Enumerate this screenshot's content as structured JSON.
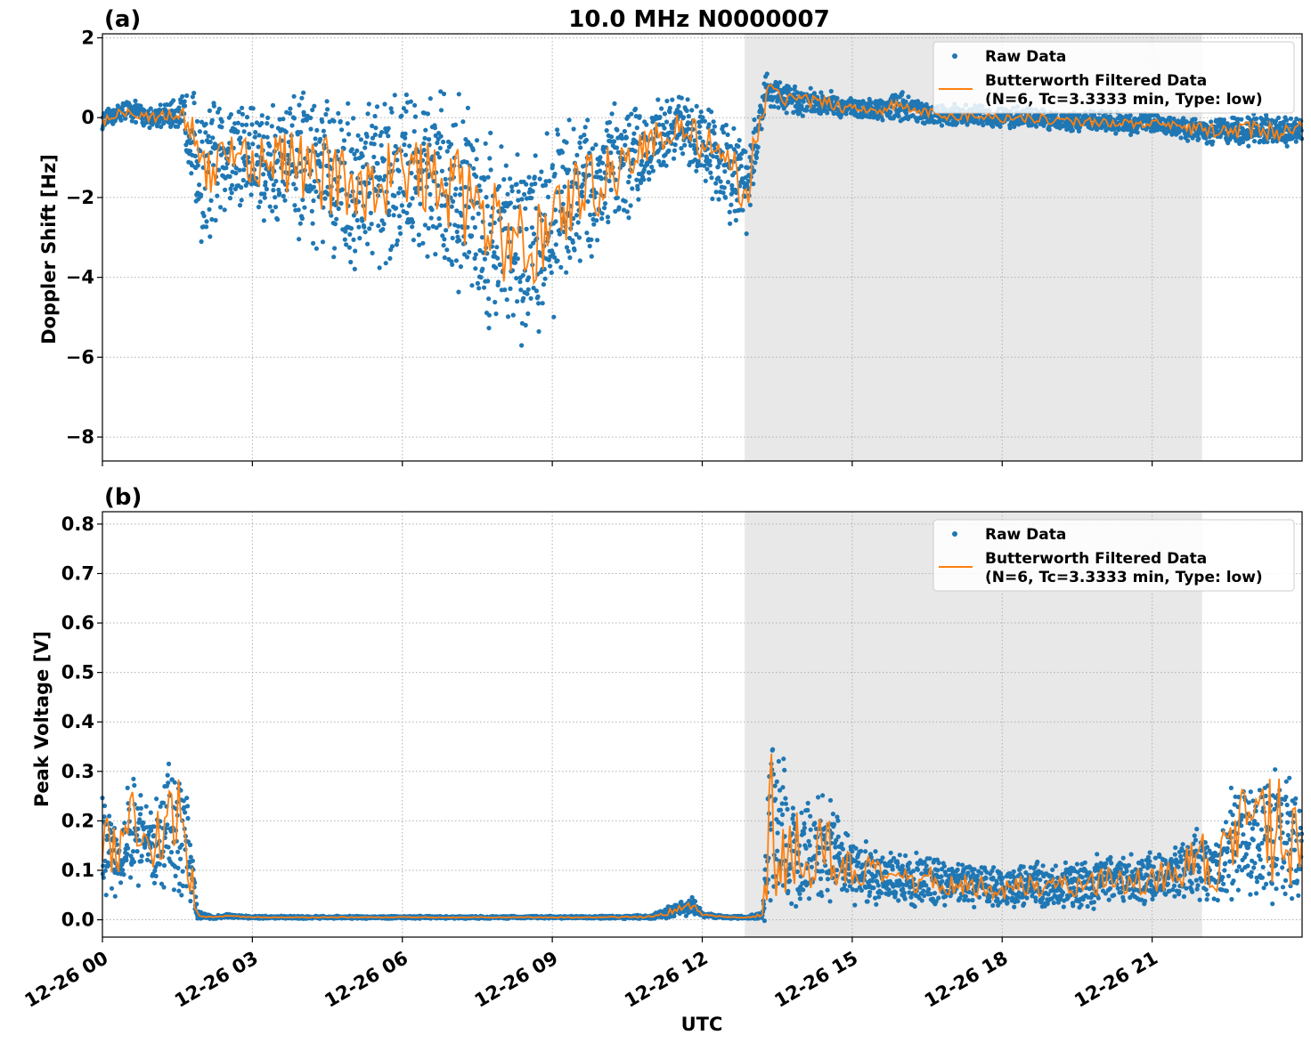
{
  "figure": {
    "title": "10.0 MHz N0000007",
    "xlabel": "UTC"
  },
  "colors": {
    "raw": "#1f77b4",
    "filtered": "#ff7f0e",
    "shade": "#e8e8e8",
    "grid": "#b0b0b0"
  },
  "chart_data": [
    {
      "type": "scatter",
      "panel_label": "(a)",
      "ylabel": "Doppler Shift [Hz]",
      "xlim_hours": [
        0,
        24
      ],
      "ylim": [
        -8.6,
        2.1
      ],
      "yticks": [
        2,
        0,
        -2,
        -4,
        -6,
        -8
      ],
      "ytick_labels": [
        "2",
        "0",
        "−2",
        "−4",
        "−6",
        "−8"
      ],
      "xticks_hours": [
        0,
        3,
        6,
        9,
        12,
        15,
        18,
        21
      ],
      "xtick_labels": [
        "12-26 00",
        "12-26 03",
        "12-26 06",
        "12-26 09",
        "12-26 12",
        "12-26 15",
        "12-26 18",
        "12-26 21"
      ],
      "shaded_span_hours": [
        12.85,
        22.0
      ],
      "grid": true,
      "legend_position": "top-right",
      "legend": [
        "Raw Data",
        "Butterworth Filtered Data",
        "(N=6, Tc=3.3333 min, Type: low)"
      ],
      "series": [
        {
          "name": "Raw Data",
          "style": "points",
          "x_hours": [
            0.0,
            0.5,
            1.0,
            1.5,
            1.8,
            2.0,
            2.5,
            3.0,
            3.5,
            4.0,
            4.5,
            5.0,
            5.5,
            6.0,
            6.5,
            7.0,
            7.5,
            8.0,
            8.5,
            9.0,
            9.5,
            10.0,
            10.5,
            11.0,
            11.5,
            12.0,
            12.5,
            12.9,
            13.3,
            13.6,
            14.0,
            14.5,
            15.0,
            15.5,
            16.0,
            16.5,
            17.0,
            17.5,
            18.0,
            18.5,
            19.0,
            19.5,
            20.0,
            20.5,
            21.0,
            21.5,
            22.0,
            22.5,
            23.0,
            23.5,
            24.0
          ],
          "center": [
            -0.1,
            0.2,
            0.0,
            0.1,
            -0.4,
            -1.6,
            -0.8,
            -1.0,
            -1.1,
            -1.2,
            -1.5,
            -1.7,
            -1.6,
            -1.4,
            -1.5,
            -1.8,
            -2.3,
            -3.0,
            -3.4,
            -2.5,
            -1.9,
            -1.5,
            -1.1,
            -0.6,
            -0.2,
            -0.6,
            -1.4,
            -1.7,
            0.7,
            0.5,
            0.4,
            0.35,
            0.25,
            0.2,
            0.3,
            0.1,
            0.05,
            0.05,
            0.0,
            0.0,
            -0.05,
            -0.1,
            -0.1,
            -0.15,
            -0.15,
            -0.25,
            -0.3,
            -0.35,
            -0.3,
            -0.35,
            -0.3
          ],
          "spread": [
            0.25,
            0.3,
            0.3,
            0.4,
            1.4,
            2.0,
            1.7,
            1.7,
            1.8,
            2.0,
            2.2,
            2.3,
            2.4,
            2.4,
            2.4,
            2.6,
            2.8,
            2.9,
            2.8,
            2.6,
            2.3,
            2.0,
            1.6,
            1.1,
            0.8,
            1.1,
            1.5,
            1.3,
            0.5,
            0.45,
            0.4,
            0.35,
            0.3,
            0.3,
            0.4,
            0.3,
            0.3,
            0.3,
            0.28,
            0.28,
            0.28,
            0.28,
            0.28,
            0.28,
            0.28,
            0.3,
            0.35,
            0.4,
            0.45,
            0.45,
            0.4
          ]
        },
        {
          "name": "Butterworth Filtered Data",
          "style": "line",
          "x_hours": [
            0.0,
            0.5,
            1.0,
            1.5,
            1.8,
            2.0,
            2.5,
            3.0,
            3.5,
            4.0,
            4.5,
            5.0,
            5.5,
            6.0,
            6.5,
            7.0,
            7.5,
            8.0,
            8.5,
            9.0,
            9.5,
            10.0,
            10.5,
            11.0,
            11.5,
            12.0,
            12.5,
            12.9,
            13.3,
            13.6,
            14.0,
            14.5,
            15.0,
            15.5,
            16.0,
            16.5,
            17.0,
            17.5,
            18.0,
            18.5,
            19.0,
            19.5,
            20.0,
            20.5,
            21.0,
            21.5,
            22.0,
            22.5,
            23.0,
            23.5,
            24.0
          ],
          "values": [
            -0.1,
            0.2,
            0.0,
            0.1,
            -0.4,
            -1.6,
            -0.8,
            -1.0,
            -1.1,
            -1.2,
            -1.5,
            -1.7,
            -1.6,
            -1.4,
            -1.5,
            -1.8,
            -2.3,
            -3.0,
            -3.4,
            -2.5,
            -1.9,
            -1.5,
            -1.1,
            -0.6,
            -0.2,
            -0.6,
            -1.4,
            -1.7,
            0.7,
            0.5,
            0.4,
            0.35,
            0.25,
            0.2,
            0.3,
            0.1,
            0.05,
            0.05,
            0.0,
            0.0,
            -0.05,
            -0.1,
            -0.1,
            -0.15,
            -0.15,
            -0.25,
            -0.3,
            -0.35,
            -0.3,
            -0.35,
            -0.3
          ],
          "wiggle": [
            0.1,
            0.15,
            0.15,
            0.2,
            0.6,
            0.8,
            0.7,
            0.7,
            0.8,
            0.9,
            1.0,
            1.0,
            1.0,
            1.0,
            1.0,
            1.1,
            1.2,
            1.2,
            1.2,
            1.1,
            1.0,
            0.9,
            0.7,
            0.5,
            0.4,
            0.5,
            0.7,
            0.6,
            0.25,
            0.2,
            0.2,
            0.18,
            0.15,
            0.15,
            0.2,
            0.15,
            0.15,
            0.12,
            0.12,
            0.12,
            0.12,
            0.12,
            0.12,
            0.12,
            0.12,
            0.15,
            0.18,
            0.2,
            0.22,
            0.22,
            0.2
          ]
        }
      ]
    },
    {
      "type": "scatter",
      "panel_label": "(b)",
      "ylabel": "Peak Voltage [V]",
      "xlim_hours": [
        0,
        24
      ],
      "ylim": [
        -0.035,
        0.825
      ],
      "yticks": [
        0.0,
        0.1,
        0.2,
        0.3,
        0.4,
        0.5,
        0.6,
        0.7,
        0.8
      ],
      "ytick_labels": [
        "0.0",
        "0.1",
        "0.2",
        "0.3",
        "0.4",
        "0.5",
        "0.6",
        "0.7",
        "0.8"
      ],
      "xticks_hours": [
        0,
        3,
        6,
        9,
        12,
        15,
        18,
        21
      ],
      "xtick_labels": [
        "12-26 00",
        "12-26 03",
        "12-26 06",
        "12-26 09",
        "12-26 12",
        "12-26 15",
        "12-26 18",
        "12-26 21"
      ],
      "shaded_span_hours": [
        12.85,
        22.0
      ],
      "grid": true,
      "legend_position": "top-right",
      "legend": [
        "Raw Data",
        "Butterworth Filtered Data",
        "(N=6, Tc=3.3333 min, Type: low)"
      ],
      "series": [
        {
          "name": "Raw Data",
          "style": "points",
          "x_hours": [
            0.0,
            0.3,
            0.6,
            0.9,
            1.2,
            1.5,
            1.7,
            1.9,
            2.2,
            2.5,
            3.0,
            4.0,
            5.0,
            6.0,
            7.0,
            8.0,
            9.0,
            10.0,
            11.0,
            11.5,
            11.8,
            12.0,
            12.5,
            12.9,
            13.2,
            13.4,
            13.7,
            14.0,
            14.5,
            15.0,
            15.5,
            16.0,
            16.5,
            17.0,
            17.5,
            18.0,
            18.5,
            19.0,
            19.5,
            20.0,
            20.5,
            21.0,
            21.5,
            22.0,
            22.3,
            22.7,
            23.0,
            23.5,
            24.0
          ],
          "center": [
            0.15,
            0.12,
            0.18,
            0.14,
            0.17,
            0.2,
            0.15,
            0.01,
            0.005,
            0.008,
            0.005,
            0.005,
            0.005,
            0.005,
            0.005,
            0.005,
            0.005,
            0.005,
            0.006,
            0.02,
            0.03,
            0.01,
            0.005,
            0.005,
            0.01,
            0.2,
            0.15,
            0.14,
            0.14,
            0.1,
            0.09,
            0.08,
            0.08,
            0.07,
            0.07,
            0.06,
            0.07,
            0.07,
            0.07,
            0.08,
            0.08,
            0.08,
            0.1,
            0.12,
            0.09,
            0.18,
            0.16,
            0.18,
            0.15
          ],
          "spread": [
            0.12,
            0.1,
            0.12,
            0.1,
            0.12,
            0.18,
            0.12,
            0.01,
            0.004,
            0.004,
            0.003,
            0.003,
            0.003,
            0.003,
            0.003,
            0.003,
            0.003,
            0.003,
            0.005,
            0.02,
            0.02,
            0.005,
            0.003,
            0.003,
            0.01,
            0.25,
            0.15,
            0.14,
            0.12,
            0.08,
            0.06,
            0.06,
            0.06,
            0.05,
            0.05,
            0.045,
            0.05,
            0.05,
            0.05,
            0.06,
            0.06,
            0.06,
            0.07,
            0.09,
            0.07,
            0.14,
            0.14,
            0.16,
            0.12
          ]
        },
        {
          "name": "Butterworth Filtered Data",
          "style": "line",
          "x_hours": [
            0.0,
            0.3,
            0.6,
            0.9,
            1.2,
            1.5,
            1.7,
            1.9,
            2.2,
            2.5,
            3.0,
            4.0,
            5.0,
            6.0,
            7.0,
            8.0,
            9.0,
            10.0,
            11.0,
            11.5,
            11.8,
            12.0,
            12.5,
            12.9,
            13.2,
            13.4,
            13.7,
            14.0,
            14.5,
            15.0,
            15.5,
            16.0,
            16.5,
            17.0,
            17.5,
            18.0,
            18.5,
            19.0,
            19.5,
            20.0,
            20.5,
            21.0,
            21.5,
            22.0,
            22.3,
            22.7,
            23.0,
            23.5,
            24.0
          ],
          "values": [
            0.15,
            0.12,
            0.18,
            0.14,
            0.17,
            0.2,
            0.15,
            0.01,
            0.005,
            0.008,
            0.005,
            0.005,
            0.005,
            0.005,
            0.005,
            0.005,
            0.005,
            0.005,
            0.006,
            0.02,
            0.03,
            0.01,
            0.005,
            0.005,
            0.01,
            0.2,
            0.15,
            0.14,
            0.14,
            0.1,
            0.09,
            0.08,
            0.08,
            0.07,
            0.07,
            0.06,
            0.07,
            0.07,
            0.07,
            0.08,
            0.08,
            0.08,
            0.1,
            0.12,
            0.09,
            0.18,
            0.16,
            0.18,
            0.15
          ],
          "wiggle": [
            0.08,
            0.06,
            0.08,
            0.06,
            0.08,
            0.12,
            0.08,
            0.004,
            0.001,
            0.001,
            0.001,
            0.001,
            0.001,
            0.001,
            0.001,
            0.001,
            0.001,
            0.001,
            0.002,
            0.008,
            0.008,
            0.002,
            0.001,
            0.001,
            0.004,
            0.18,
            0.1,
            0.09,
            0.08,
            0.04,
            0.03,
            0.03,
            0.03,
            0.025,
            0.025,
            0.02,
            0.025,
            0.025,
            0.025,
            0.03,
            0.03,
            0.03,
            0.04,
            0.06,
            0.04,
            0.12,
            0.1,
            0.12,
            0.08
          ]
        }
      ]
    }
  ]
}
